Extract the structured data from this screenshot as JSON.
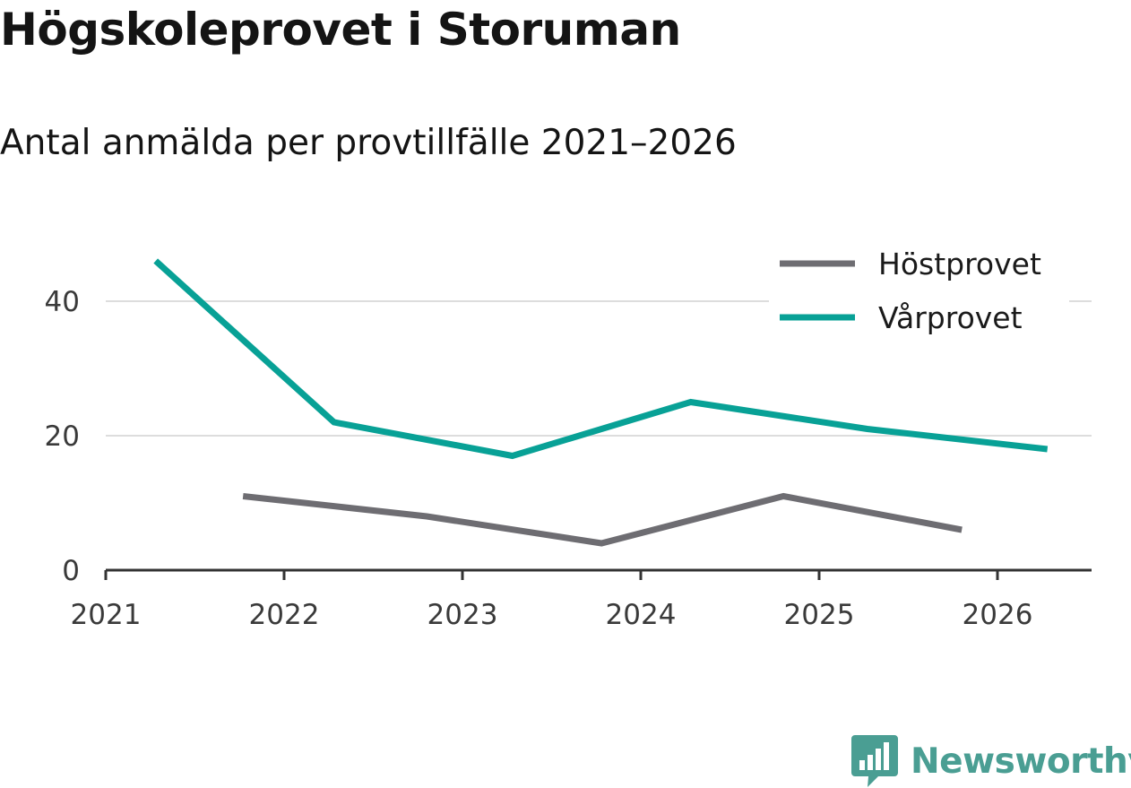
{
  "colors": {
    "brand": "#4a9e93",
    "gridline": "#dddddd",
    "axis": "#333333"
  },
  "chart_data": {
    "type": "line",
    "title": "Högskoleprovet i Storuman",
    "subtitle": "Antal anmälda per provtillfälle 2021–2026",
    "xlabel": "",
    "ylabel": "",
    "xlim": [
      2021,
      2026.55
    ],
    "ylim": [
      0,
      48
    ],
    "x_ticks": [
      "2021",
      "2022",
      "2023",
      "2024",
      "2025",
      "2026"
    ],
    "x_tick_values": [
      2021,
      2022,
      2023,
      2024,
      2025,
      2026
    ],
    "y_ticks": [
      "0",
      "20",
      "40"
    ],
    "y_tick_values": [
      0,
      20,
      40
    ],
    "gridlines": "horizontal",
    "legend_position": "top-right",
    "series": [
      {
        "name": "Höstprovet",
        "color": "#6e6d72",
        "x": [
          2021.77,
          2022.8,
          2023.78,
          2024.8,
          2025.8
        ],
        "values": [
          11,
          8,
          4,
          11,
          6
        ]
      },
      {
        "name": "Vårprovet",
        "color": "#08a196",
        "x": [
          2021.28,
          2022.28,
          2023.28,
          2024.28,
          2025.27,
          2026.28
        ],
        "values": [
          46,
          22,
          17,
          25,
          21,
          18
        ]
      }
    ]
  },
  "brand": {
    "name": "Newsworthy",
    "icon": "newsworthy-logo-icon"
  }
}
